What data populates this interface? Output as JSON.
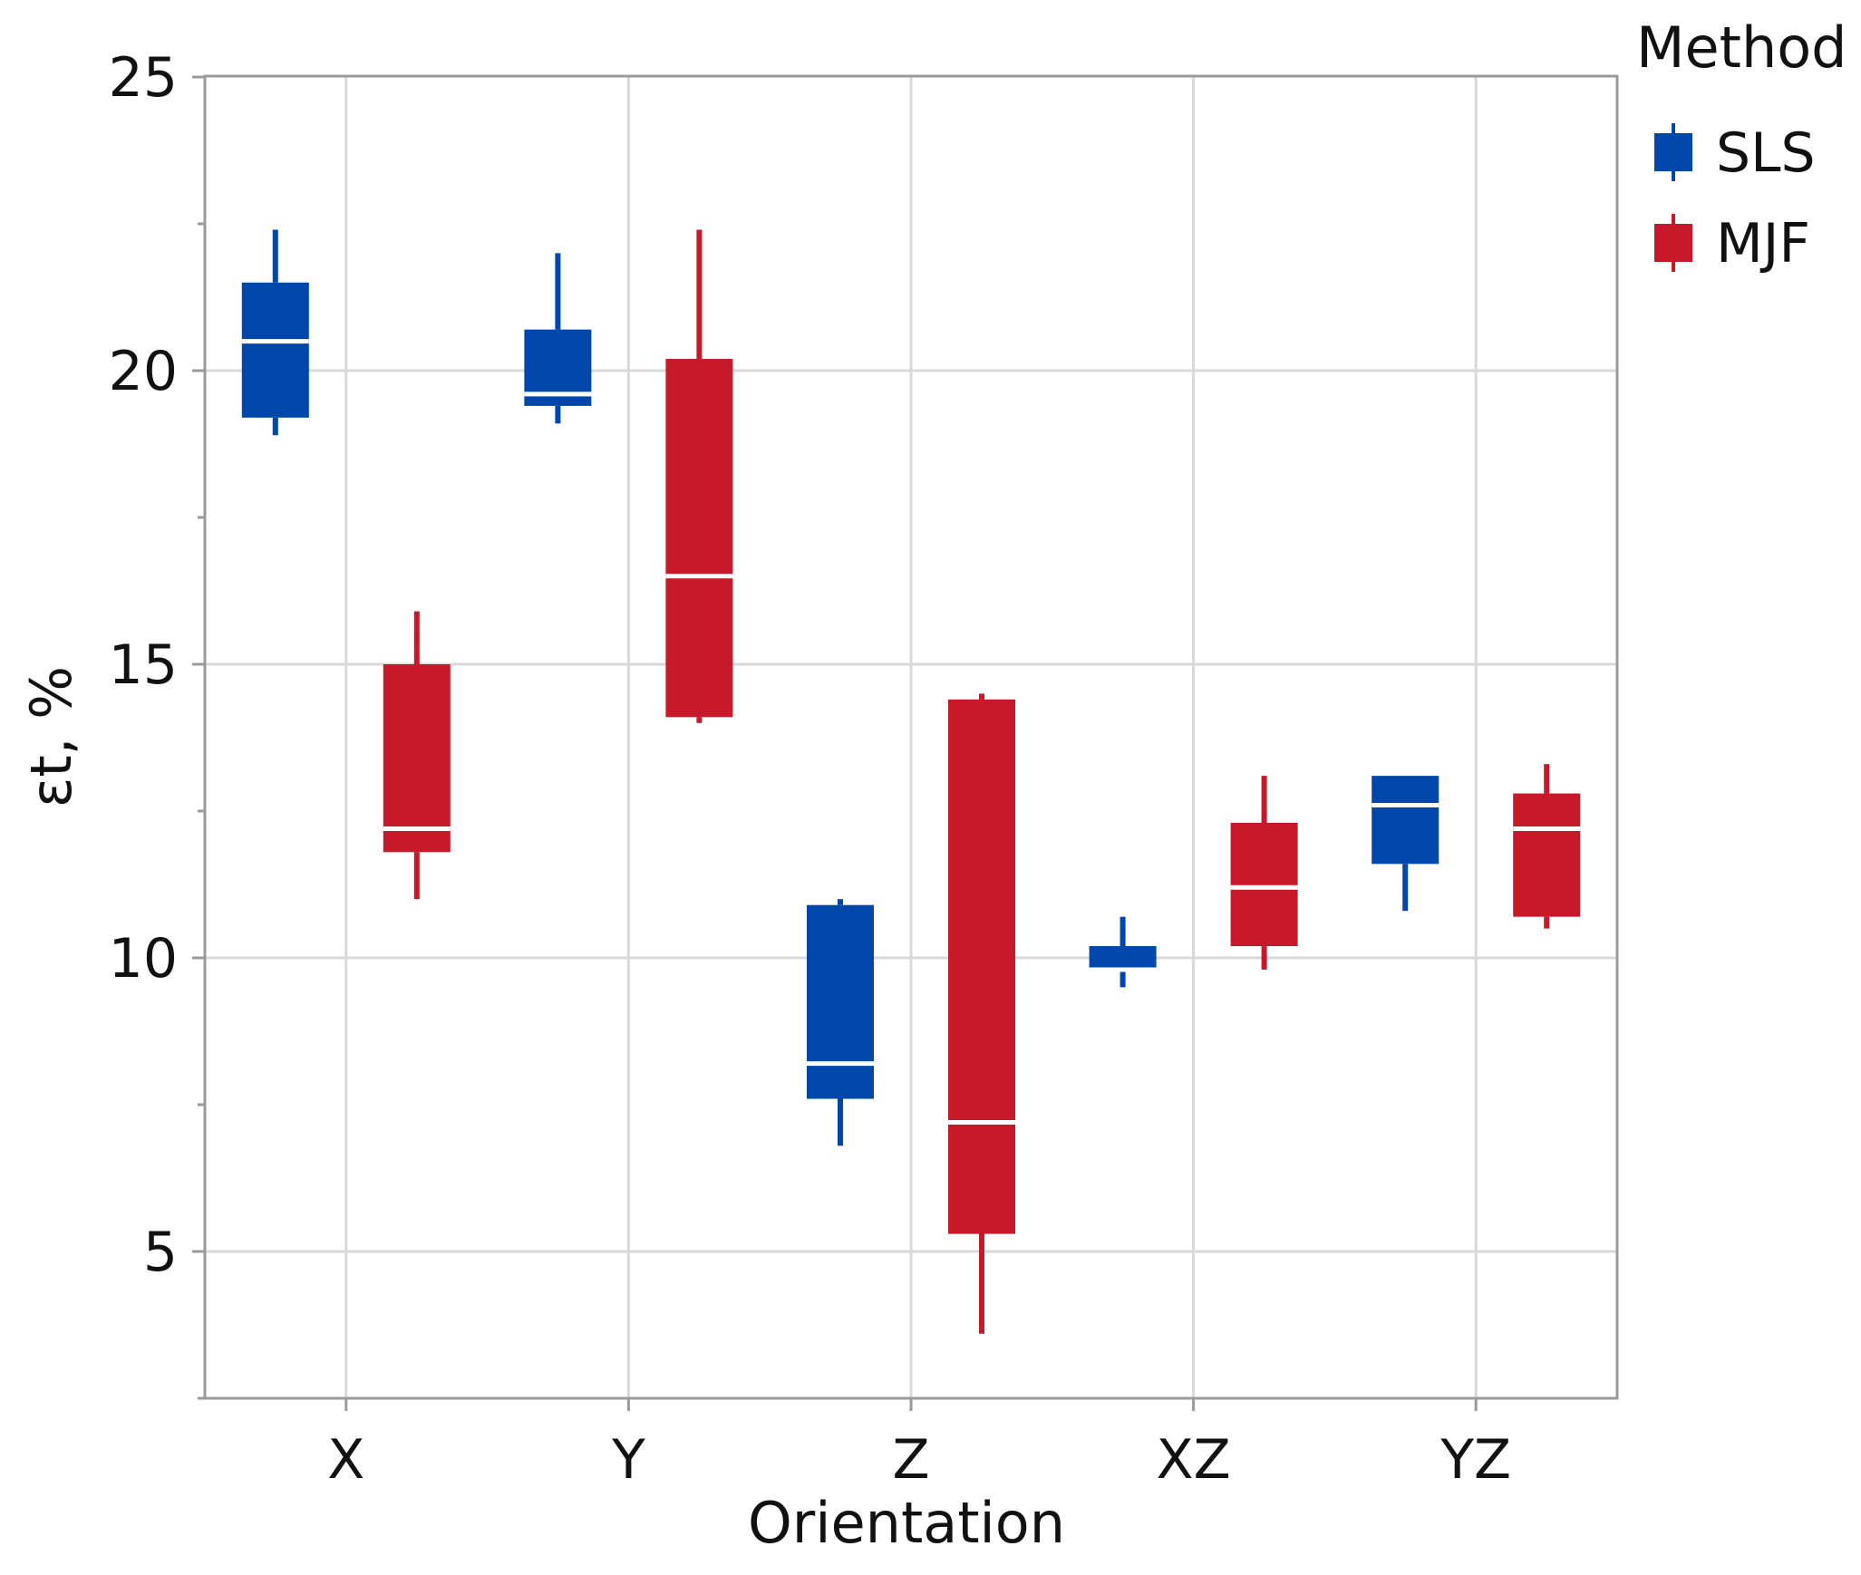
{
  "chart_data": {
    "type": "box",
    "xlabel": "Orientation",
    "ylabel": "εt, %",
    "categories": [
      "X",
      "Y",
      "Z",
      "XZ",
      "YZ"
    ],
    "ylim": [
      2.5,
      25
    ],
    "yticks": [
      5,
      10,
      15,
      20,
      25
    ],
    "grid": true,
    "legend": {
      "title": "Method",
      "position": "top-right"
    },
    "series": [
      {
        "name": "SLS",
        "color": "#0047ab",
        "boxes": [
          {
            "category": "X",
            "min": 18.9,
            "q1": 19.2,
            "median": 20.5,
            "q3": 21.5,
            "max": 22.4
          },
          {
            "category": "Y",
            "min": 19.1,
            "q1": 19.4,
            "median": 19.6,
            "q3": 20.7,
            "max": 22.0
          },
          {
            "category": "Z",
            "min": 6.8,
            "q1": 7.6,
            "median": 8.2,
            "q3": 10.9,
            "max": 11.0
          },
          {
            "category": "XZ",
            "min": 9.5,
            "q1": 9.8,
            "median": 9.8,
            "q3": 10.2,
            "max": 10.7
          },
          {
            "category": "YZ",
            "min": 10.8,
            "q1": 11.6,
            "median": 12.6,
            "q3": 13.1,
            "max": 13.1
          }
        ]
      },
      {
        "name": "MJF",
        "color": "#c8192b",
        "boxes": [
          {
            "category": "X",
            "min": 11.0,
            "q1": 11.8,
            "median": 12.2,
            "q3": 15.0,
            "max": 15.9
          },
          {
            "category": "Y",
            "min": 14.0,
            "q1": 14.1,
            "median": 16.5,
            "q3": 20.2,
            "max": 22.4
          },
          {
            "category": "Z",
            "min": 3.6,
            "q1": 5.3,
            "median": 7.2,
            "q3": 14.4,
            "max": 14.5
          },
          {
            "category": "XZ",
            "min": 9.8,
            "q1": 10.2,
            "median": 11.2,
            "q3": 12.3,
            "max": 13.1
          },
          {
            "category": "YZ",
            "min": 10.5,
            "q1": 10.7,
            "median": 12.2,
            "q3": 12.8,
            "max": 13.3
          }
        ]
      }
    ]
  }
}
